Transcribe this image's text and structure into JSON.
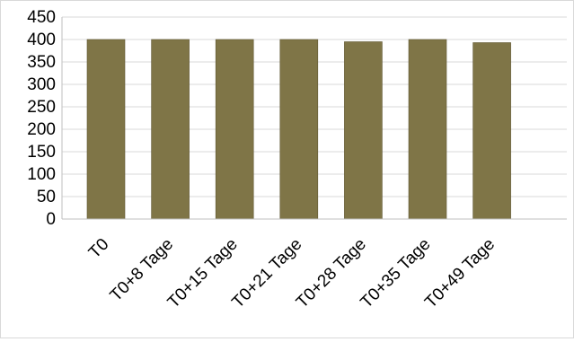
{
  "chart_data": {
    "type": "bar",
    "categories": [
      "T0",
      "T0+8 Tage",
      "T0+15 Tage",
      "T0+21 Tage",
      "T0+28 Tage",
      "T0+35 Tage",
      "T0+49 Tage"
    ],
    "series": [
      {
        "values": [
          400,
          400,
          400,
          400,
          395,
          400,
          393
        ]
      }
    ],
    "ylim": [
      0,
      450
    ],
    "yticks": [
      0,
      50,
      100,
      150,
      200,
      250,
      300,
      350,
      400,
      450
    ],
    "yticks_labels": [
      "0",
      "50",
      "100",
      "150",
      "200",
      "250",
      "300",
      "350",
      "400",
      "450"
    ],
    "grid": true,
    "legend": "none",
    "colors": {
      "bar": "#7f7547",
      "bar_edge": "#5f5632",
      "grid": "#d9d9d9",
      "axis": "#bfbfbf"
    }
  }
}
